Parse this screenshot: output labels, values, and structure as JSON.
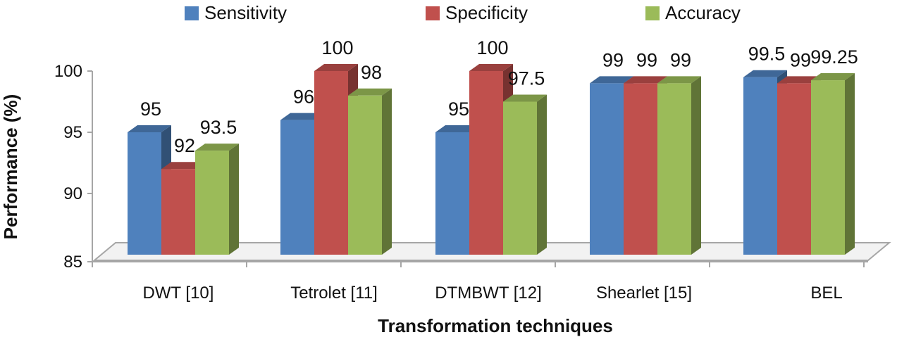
{
  "chart_data": {
    "type": "bar",
    "style": "3d-clustered",
    "xlabel": "Transformation techniques",
    "ylabel": "Performance (%)",
    "ylim": [
      85,
      100
    ],
    "yticks": [
      85,
      90,
      95,
      100
    ],
    "categories": [
      "DWT [10]",
      "Tetrolet [11]",
      "DTMBWT [12]",
      "Shearlet [15]",
      "BEL"
    ],
    "series": [
      {
        "name": "Sensitivity",
        "color": "#4F81BD",
        "values": [
          95,
          96,
          95,
          99,
          99.5
        ],
        "labels": [
          "95",
          "96",
          "95",
          "99",
          "99.5"
        ]
      },
      {
        "name": "Specificity",
        "color": "#C0504D",
        "values": [
          92,
          100,
          100,
          99,
          99
        ],
        "labels": [
          "92",
          "100",
          "100",
          "99",
          "99"
        ]
      },
      {
        "name": "Accuracy",
        "color": "#9BBB59",
        "values": [
          93.5,
          98,
          97.5,
          99,
          99.25
        ],
        "labels": [
          "93.5",
          "98",
          "97.5",
          "99",
          "99.25"
        ]
      }
    ],
    "legend": "top"
  }
}
